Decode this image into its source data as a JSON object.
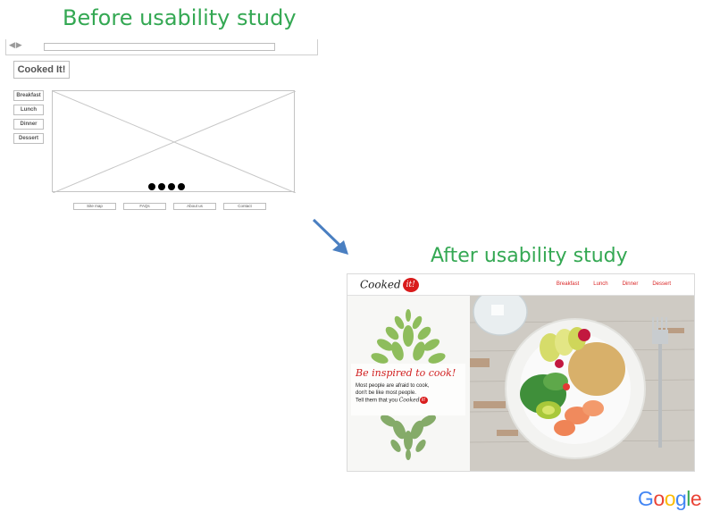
{
  "headings": {
    "before": "Before usability study",
    "after": "After usability study"
  },
  "wireframe": {
    "nav_arrows": "◀ ▶",
    "logo": "Cooked It!",
    "menu": [
      "Breakfast",
      "Lunch",
      "Dinner",
      "Dessert"
    ],
    "carousel_dots": 4,
    "footer": [
      "Site map",
      "FAQs",
      "About us",
      "Contact"
    ]
  },
  "mockup": {
    "logo_text": "Cooked",
    "logo_badge": "it!",
    "nav": [
      "Breakfast",
      "Lunch",
      "Dinner",
      "Dessert"
    ],
    "tagline": "Be inspired to cook!",
    "copy_line1": "Most people are afraid to cook,",
    "copy_line2": "don't be like most people.",
    "copy_line3": "Tell them that you",
    "copy_logo": "Cooked",
    "copy_badge": "it!"
  },
  "branding": {
    "google": "Google",
    "colors": {
      "heading_green": "#34a853",
      "accent_red": "#d91c1c",
      "arrow_blue": "#4a7fc1"
    }
  }
}
